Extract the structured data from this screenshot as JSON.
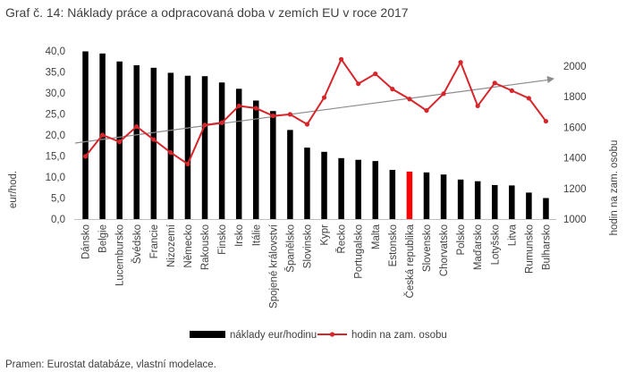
{
  "header": {
    "title": "Graf č. 14: Náklady práce a odpracovaná doba v zemích EU v roce 2017"
  },
  "footer": {
    "source": "Pramen: Eurostat databáze, vlastní modelace."
  },
  "colors": {
    "bar": "#000000",
    "highlight_bar": "#ff0000",
    "line": "#d7262b",
    "trend": "#8c8c8c"
  },
  "chart_data": {
    "type": "bar",
    "categories": [
      "Dánsko",
      "Belgie",
      "Lucembursko",
      "Švédsko",
      "Francie",
      "Nizozemí",
      "Německo",
      "Rakousko",
      "Finsko",
      "Irsko",
      "Itálie",
      "Spojené království",
      "Španělsko",
      "Slovinsko",
      "Kypr",
      "Řecko",
      "Portugalsko",
      "Malta",
      "Estonsko",
      "Česká republika",
      "Slovensko",
      "Chorvatsko",
      "Polsko",
      "Maďarsko",
      "Lotyšsko",
      "Litva",
      "Rumunsko",
      "Bulharsko"
    ],
    "highlight_category": "Česká republika",
    "series": [
      {
        "name": "náklady eur/hodinu",
        "type": "bar",
        "axis": "left",
        "values": [
          39.9,
          39.4,
          37.5,
          36.6,
          36.0,
          34.8,
          34.1,
          34.0,
          32.5,
          31.0,
          28.2,
          25.7,
          21.2,
          17.0,
          16.0,
          14.5,
          14.1,
          13.8,
          11.7,
          11.3,
          11.1,
          10.6,
          9.4,
          9.0,
          8.1,
          8.0,
          6.3,
          5.0
        ]
      },
      {
        "name": "hodin na zam. osobu",
        "type": "line",
        "axis": "right",
        "values": [
          1410,
          1550,
          1505,
          1605,
          1520,
          1435,
          1360,
          1615,
          1630,
          1740,
          1725,
          1675,
          1685,
          1620,
          1795,
          2045,
          1885,
          1950,
          1850,
          1785,
          1710,
          1820,
          2025,
          1740,
          1890,
          1840,
          1790,
          1640
        ]
      }
    ],
    "trendline": {
      "series": "hodin na zam. osobu",
      "style": "arrow"
    },
    "y_left": {
      "label": "eur/hod.",
      "lim": [
        0,
        40
      ],
      "ticks": [
        "0,0",
        "5,0",
        "10,0",
        "15,0",
        "20,0",
        "25,0",
        "30,0",
        "35,0",
        "40,0"
      ]
    },
    "y_right": {
      "label": "hodin na zam. osobu",
      "lim": [
        1000,
        2100
      ],
      "ticks": [
        "1000",
        "1200",
        "1400",
        "1600",
        "1800",
        "2000"
      ]
    },
    "legend": {
      "position": "bottom",
      "items": [
        "náklady eur/hodinu",
        "hodin na zam. osobu"
      ]
    }
  }
}
